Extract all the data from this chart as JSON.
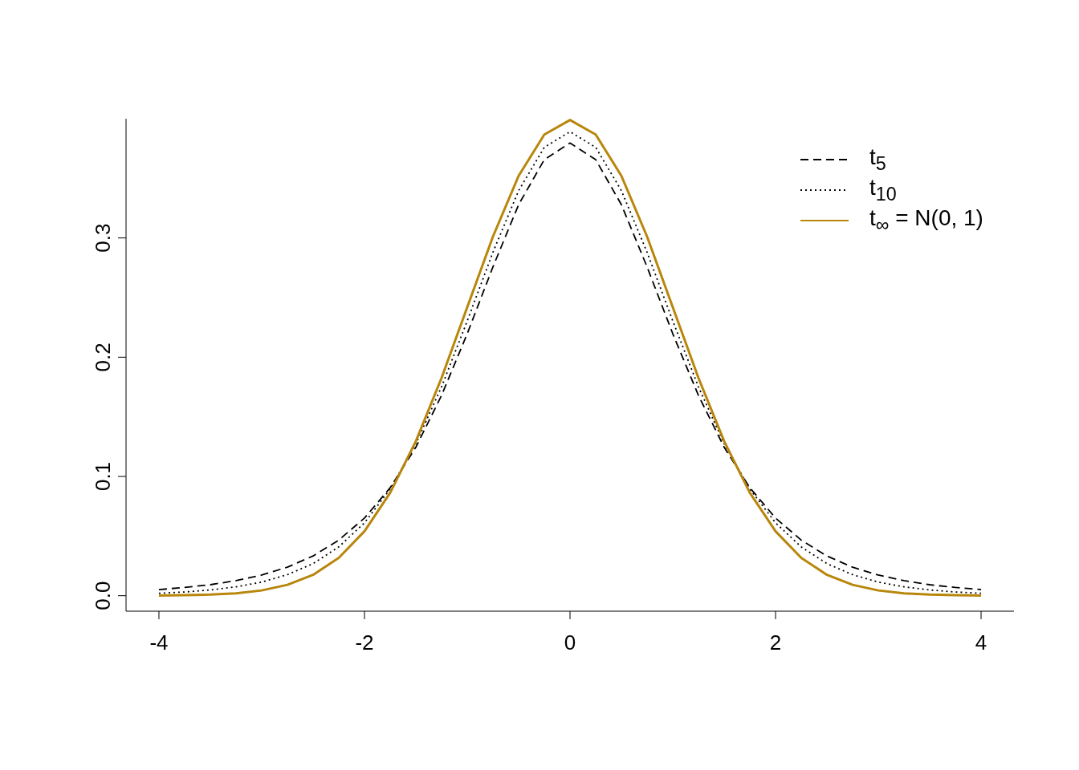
{
  "chart_data": {
    "type": "line",
    "x": [
      -4,
      -3.75,
      -3.5,
      -3.25,
      -3,
      -2.75,
      -2.5,
      -2.25,
      -2,
      -1.75,
      -1.5,
      -1.25,
      -1,
      -0.75,
      -0.5,
      -0.25,
      0,
      0.25,
      0.5,
      0.75,
      1,
      1.25,
      1.5,
      1.75,
      2,
      2.25,
      2.5,
      2.75,
      3,
      3.25,
      3.5,
      3.75,
      4
    ],
    "series": [
      {
        "name": "t$_{5}$",
        "color": "#000000",
        "line_style": "dashed",
        "values": [
          0.0051,
          0.0069,
          0.0092,
          0.0126,
          0.0173,
          0.0239,
          0.0333,
          0.0466,
          0.0651,
          0.0905,
          0.1245,
          0.1679,
          0.2197,
          0.2757,
          0.3279,
          0.3657,
          0.3796,
          0.3657,
          0.3279,
          0.2757,
          0.2197,
          0.1679,
          0.1245,
          0.0905,
          0.0651,
          0.0466,
          0.0333,
          0.0239,
          0.0173,
          0.0126,
          0.0092,
          0.0069,
          0.0051
        ]
      },
      {
        "name": "t$_{10}$",
        "color": "#000000",
        "line_style": "dotted",
        "values": [
          0.002,
          0.0031,
          0.0048,
          0.0074,
          0.0114,
          0.0176,
          0.0269,
          0.0409,
          0.0611,
          0.0895,
          0.1275,
          0.1751,
          0.2304,
          0.288,
          0.3397,
          0.376,
          0.3891,
          0.376,
          0.3397,
          0.288,
          0.2304,
          0.1751,
          0.1275,
          0.0895,
          0.0611,
          0.0409,
          0.0269,
          0.0176,
          0.0114,
          0.0074,
          0.0048,
          0.0031,
          0.002
        ]
      },
      {
        "name": "t$_{∞}$ = N(0, 1)",
        "color": "#b8860b",
        "line_style": "solid",
        "values": [
          0.0001,
          0.0004,
          0.0009,
          0.002,
          0.0044,
          0.0091,
          0.0175,
          0.0317,
          0.054,
          0.0863,
          0.1295,
          0.1826,
          0.242,
          0.3011,
          0.3521,
          0.3867,
          0.3989,
          0.3867,
          0.3521,
          0.3011,
          0.242,
          0.1826,
          0.1295,
          0.0863,
          0.054,
          0.0317,
          0.0175,
          0.0091,
          0.0044,
          0.002,
          0.0009,
          0.0004,
          0.0001
        ]
      }
    ],
    "xlim": [
      -4.32,
      4.32
    ],
    "xticks": [
      -4,
      -2,
      0,
      2,
      4
    ],
    "ylim": [
      -0.013,
      0.4
    ],
    "yticks": [
      {
        "value": 0,
        "label": "0.0"
      },
      0.1,
      0.2,
      0.3
    ],
    "legend": "top right",
    "grid": false
  }
}
